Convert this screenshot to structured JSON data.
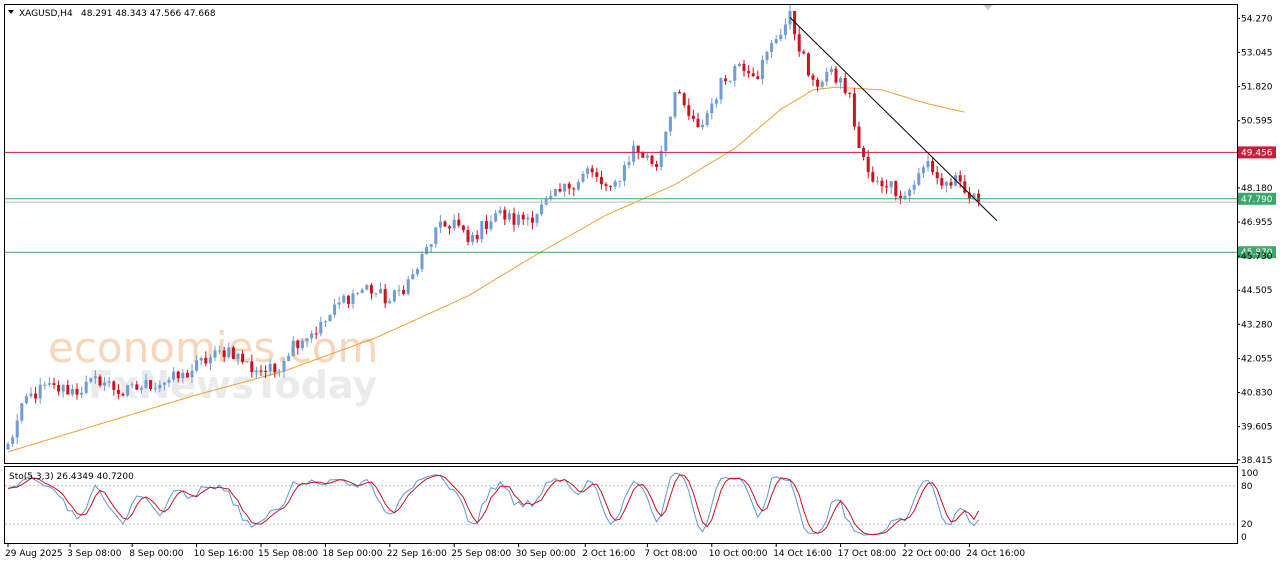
{
  "header": {
    "symbol": "XAGUSD,H4",
    "ohlc": "48.291 48.343 47.566 47.668"
  },
  "indicator": {
    "label": "Sto(5,3,3) 26.4349 40.7200",
    "levels": [
      "100",
      "80",
      "20",
      "0"
    ]
  },
  "watermark": {
    "line1": "economies.com",
    "line2": "FxNewsToday"
  },
  "colors": {
    "bull": "#6f9bd6",
    "bear": "#d0101e",
    "ma": "#f0a030",
    "resistance": "#c81e3c",
    "support": "#3aa86a",
    "trendline": "#000000",
    "stoch_main": "#5b97d6",
    "stoch_signal": "#d0101e"
  },
  "chart_data": {
    "type": "candlestick",
    "symbol": "XAGUSD",
    "timeframe": "H4",
    "y_ticks": [
      "54.270",
      "53.045",
      "51.820",
      "50.595",
      "48.180",
      "46.955",
      "45.730",
      "44.505",
      "43.280",
      "42.055",
      "40.830",
      "39.605",
      "38.415"
    ],
    "ylim": [
      38.3,
      54.75
    ],
    "x_ticks": [
      "29 Aug 2025",
      "3 Sep 08:00",
      "8 Sep 00:00",
      "10 Sep 16:00",
      "15 Sep 08:00",
      "18 Sep 00:00",
      "22 Sep 16:00",
      "25 Sep 08:00",
      "30 Sep 00:00",
      "2 Oct 16:00",
      "7 Oct 08:00",
      "10 Oct 00:00",
      "14 Oct 16:00",
      "17 Oct 08:00",
      "22 Oct 00:00",
      "24 Oct 16:00"
    ],
    "horizontal_levels": [
      {
        "value": 49.456,
        "label": "49.456",
        "kind": "resistance"
      },
      {
        "value": 47.79,
        "label": "47.790",
        "kind": "support"
      },
      {
        "value": 45.87,
        "label": "45.870",
        "kind": "support"
      }
    ],
    "current_price": 47.668,
    "close_path": [
      [
        0,
        38.9
      ],
      [
        4,
        40.6
      ],
      [
        8,
        41.0
      ],
      [
        15,
        40.9
      ],
      [
        20,
        41.3
      ],
      [
        25,
        40.8
      ],
      [
        30,
        41.1
      ],
      [
        38,
        41.4
      ],
      [
        42,
        41.9
      ],
      [
        48,
        42.4
      ],
      [
        53,
        41.7
      ],
      [
        58,
        41.6
      ],
      [
        62,
        42.6
      ],
      [
        68,
        43.2
      ],
      [
        73,
        44.2
      ],
      [
        78,
        44.6
      ],
      [
        83,
        44.1
      ],
      [
        88,
        45.0
      ],
      [
        93,
        46.6
      ],
      [
        97,
        47.0
      ],
      [
        100,
        46.2
      ],
      [
        106,
        47.3
      ],
      [
        110,
        47.0
      ],
      [
        114,
        47.2
      ],
      [
        120,
        48.0
      ],
      [
        126,
        48.8
      ],
      [
        131,
        48.0
      ],
      [
        136,
        49.6
      ],
      [
        141,
        49.0
      ],
      [
        145,
        51.6
      ],
      [
        150,
        50.2
      ],
      [
        155,
        51.9
      ],
      [
        159,
        52.7
      ],
      [
        163,
        52.3
      ],
      [
        167,
        53.6
      ],
      [
        170,
        54.3
      ],
      [
        172,
        53.3
      ],
      [
        175,
        51.8
      ],
      [
        178,
        52.3
      ],
      [
        181,
        52.0
      ],
      [
        183,
        51.4
      ],
      [
        185,
        49.6
      ],
      [
        188,
        48.3
      ],
      [
        191,
        48.4
      ],
      [
        195,
        47.9
      ],
      [
        198,
        48.6
      ],
      [
        200,
        49.1
      ],
      [
        203,
        48.3
      ],
      [
        206,
        48.4
      ],
      [
        208,
        47.95
      ],
      [
        211,
        47.67
      ]
    ],
    "moving_average": [
      [
        0,
        38.7
      ],
      [
        20,
        39.7
      ],
      [
        40,
        40.7
      ],
      [
        60,
        41.6
      ],
      [
        80,
        42.8
      ],
      [
        100,
        44.3
      ],
      [
        115,
        45.8
      ],
      [
        130,
        47.2
      ],
      [
        145,
        48.3
      ],
      [
        158,
        49.6
      ],
      [
        168,
        51.0
      ],
      [
        175,
        51.7
      ],
      [
        180,
        51.8
      ],
      [
        190,
        51.7
      ],
      [
        200,
        51.2
      ],
      [
        208,
        50.9
      ]
    ],
    "trendline": [
      [
        170,
        54.3
      ],
      [
        215,
        47.0
      ]
    ],
    "stochastic": {
      "ylim": [
        0,
        100
      ],
      "levels": [
        80,
        20
      ],
      "k_period": 5,
      "d_period": 3,
      "slowing": 3,
      "main_last": 26.4349,
      "signal_last": 40.72
    }
  }
}
